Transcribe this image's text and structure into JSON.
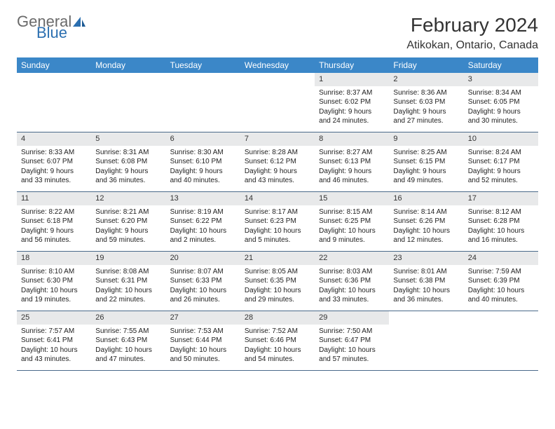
{
  "logo": {
    "text1": "General",
    "text2": "Blue",
    "color_gray": "#6a6a6a",
    "color_blue": "#2b6fb0"
  },
  "header": {
    "title": "February 2024",
    "location": "Atikokan, Ontario, Canada"
  },
  "colors": {
    "header_bg": "#3b87c8",
    "header_text": "#ffffff",
    "daynum_bg": "#e8e9ea",
    "row_border": "#4a6a8a",
    "text": "#222222"
  },
  "weekdays": [
    "Sunday",
    "Monday",
    "Tuesday",
    "Wednesday",
    "Thursday",
    "Friday",
    "Saturday"
  ],
  "weeks": [
    [
      {
        "empty": true
      },
      {
        "empty": true
      },
      {
        "empty": true
      },
      {
        "empty": true
      },
      {
        "n": "1",
        "sunrise": "Sunrise: 8:37 AM",
        "sunset": "Sunset: 6:02 PM",
        "daylight": "Daylight: 9 hours and 24 minutes."
      },
      {
        "n": "2",
        "sunrise": "Sunrise: 8:36 AM",
        "sunset": "Sunset: 6:03 PM",
        "daylight": "Daylight: 9 hours and 27 minutes."
      },
      {
        "n": "3",
        "sunrise": "Sunrise: 8:34 AM",
        "sunset": "Sunset: 6:05 PM",
        "daylight": "Daylight: 9 hours and 30 minutes."
      }
    ],
    [
      {
        "n": "4",
        "sunrise": "Sunrise: 8:33 AM",
        "sunset": "Sunset: 6:07 PM",
        "daylight": "Daylight: 9 hours and 33 minutes."
      },
      {
        "n": "5",
        "sunrise": "Sunrise: 8:31 AM",
        "sunset": "Sunset: 6:08 PM",
        "daylight": "Daylight: 9 hours and 36 minutes."
      },
      {
        "n": "6",
        "sunrise": "Sunrise: 8:30 AM",
        "sunset": "Sunset: 6:10 PM",
        "daylight": "Daylight: 9 hours and 40 minutes."
      },
      {
        "n": "7",
        "sunrise": "Sunrise: 8:28 AM",
        "sunset": "Sunset: 6:12 PM",
        "daylight": "Daylight: 9 hours and 43 minutes."
      },
      {
        "n": "8",
        "sunrise": "Sunrise: 8:27 AM",
        "sunset": "Sunset: 6:13 PM",
        "daylight": "Daylight: 9 hours and 46 minutes."
      },
      {
        "n": "9",
        "sunrise": "Sunrise: 8:25 AM",
        "sunset": "Sunset: 6:15 PM",
        "daylight": "Daylight: 9 hours and 49 minutes."
      },
      {
        "n": "10",
        "sunrise": "Sunrise: 8:24 AM",
        "sunset": "Sunset: 6:17 PM",
        "daylight": "Daylight: 9 hours and 52 minutes."
      }
    ],
    [
      {
        "n": "11",
        "sunrise": "Sunrise: 8:22 AM",
        "sunset": "Sunset: 6:18 PM",
        "daylight": "Daylight: 9 hours and 56 minutes."
      },
      {
        "n": "12",
        "sunrise": "Sunrise: 8:21 AM",
        "sunset": "Sunset: 6:20 PM",
        "daylight": "Daylight: 9 hours and 59 minutes."
      },
      {
        "n": "13",
        "sunrise": "Sunrise: 8:19 AM",
        "sunset": "Sunset: 6:22 PM",
        "daylight": "Daylight: 10 hours and 2 minutes."
      },
      {
        "n": "14",
        "sunrise": "Sunrise: 8:17 AM",
        "sunset": "Sunset: 6:23 PM",
        "daylight": "Daylight: 10 hours and 5 minutes."
      },
      {
        "n": "15",
        "sunrise": "Sunrise: 8:15 AM",
        "sunset": "Sunset: 6:25 PM",
        "daylight": "Daylight: 10 hours and 9 minutes."
      },
      {
        "n": "16",
        "sunrise": "Sunrise: 8:14 AM",
        "sunset": "Sunset: 6:26 PM",
        "daylight": "Daylight: 10 hours and 12 minutes."
      },
      {
        "n": "17",
        "sunrise": "Sunrise: 8:12 AM",
        "sunset": "Sunset: 6:28 PM",
        "daylight": "Daylight: 10 hours and 16 minutes."
      }
    ],
    [
      {
        "n": "18",
        "sunrise": "Sunrise: 8:10 AM",
        "sunset": "Sunset: 6:30 PM",
        "daylight": "Daylight: 10 hours and 19 minutes."
      },
      {
        "n": "19",
        "sunrise": "Sunrise: 8:08 AM",
        "sunset": "Sunset: 6:31 PM",
        "daylight": "Daylight: 10 hours and 22 minutes."
      },
      {
        "n": "20",
        "sunrise": "Sunrise: 8:07 AM",
        "sunset": "Sunset: 6:33 PM",
        "daylight": "Daylight: 10 hours and 26 minutes."
      },
      {
        "n": "21",
        "sunrise": "Sunrise: 8:05 AM",
        "sunset": "Sunset: 6:35 PM",
        "daylight": "Daylight: 10 hours and 29 minutes."
      },
      {
        "n": "22",
        "sunrise": "Sunrise: 8:03 AM",
        "sunset": "Sunset: 6:36 PM",
        "daylight": "Daylight: 10 hours and 33 minutes."
      },
      {
        "n": "23",
        "sunrise": "Sunrise: 8:01 AM",
        "sunset": "Sunset: 6:38 PM",
        "daylight": "Daylight: 10 hours and 36 minutes."
      },
      {
        "n": "24",
        "sunrise": "Sunrise: 7:59 AM",
        "sunset": "Sunset: 6:39 PM",
        "daylight": "Daylight: 10 hours and 40 minutes."
      }
    ],
    [
      {
        "n": "25",
        "sunrise": "Sunrise: 7:57 AM",
        "sunset": "Sunset: 6:41 PM",
        "daylight": "Daylight: 10 hours and 43 minutes."
      },
      {
        "n": "26",
        "sunrise": "Sunrise: 7:55 AM",
        "sunset": "Sunset: 6:43 PM",
        "daylight": "Daylight: 10 hours and 47 minutes."
      },
      {
        "n": "27",
        "sunrise": "Sunrise: 7:53 AM",
        "sunset": "Sunset: 6:44 PM",
        "daylight": "Daylight: 10 hours and 50 minutes."
      },
      {
        "n": "28",
        "sunrise": "Sunrise: 7:52 AM",
        "sunset": "Sunset: 6:46 PM",
        "daylight": "Daylight: 10 hours and 54 minutes."
      },
      {
        "n": "29",
        "sunrise": "Sunrise: 7:50 AM",
        "sunset": "Sunset: 6:47 PM",
        "daylight": "Daylight: 10 hours and 57 minutes."
      },
      {
        "empty": true
      },
      {
        "empty": true
      }
    ]
  ]
}
